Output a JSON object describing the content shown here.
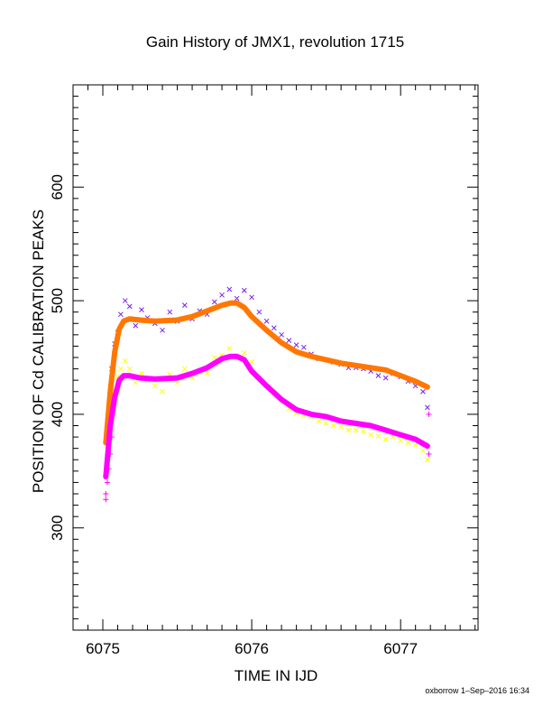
{
  "chart_data": {
    "type": "scatter",
    "title": "Gain History of JMX1, revolution 1715",
    "xlabel": "TIME IN IJD",
    "ylabel": "POSITION OF Cd CALIBRATION PEAKS",
    "xlim": [
      6074.8,
      6077.52
    ],
    "ylim": [
      210,
      690
    ],
    "x_ticks": [
      6075,
      6076,
      6077
    ],
    "y_ticks": [
      300,
      400,
      500,
      600
    ],
    "x_tick_labels": [
      "6075",
      "6076",
      "6077"
    ],
    "y_tick_labels": [
      "300",
      "400",
      "500",
      "600"
    ],
    "grid": false,
    "legend": "none",
    "footer_text": "oxborrow  1–Sep–2016 16:34",
    "series": [
      {
        "kind": "scatter-x",
        "color": "#7722ee",
        "x": [
          6075.04,
          6075.06,
          6075.08,
          6075.1,
          6075.12,
          6075.15,
          6075.18,
          6075.22,
          6075.26,
          6075.3,
          6075.35,
          6075.4,
          6075.45,
          6075.5,
          6075.55,
          6075.6,
          6075.65,
          6075.7,
          6075.75,
          6075.8,
          6075.85,
          6075.9,
          6075.95,
          6076.0,
          6076.05,
          6076.1,
          6076.15,
          6076.2,
          6076.25,
          6076.3,
          6076.35,
          6076.4,
          6076.45,
          6076.5,
          6076.55,
          6076.6,
          6076.65,
          6076.7,
          6076.75,
          6076.8,
          6076.85,
          6076.9,
          6076.95,
          6077.0,
          6077.05,
          6077.1,
          6077.15,
          6077.18
        ],
        "y": [
          405,
          440,
          462,
          472,
          488,
          500,
          495,
          478,
          492,
          485,
          480,
          474,
          490,
          482,
          496,
          484,
          491,
          488,
          499,
          505,
          510,
          502,
          509,
          503,
          490,
          482,
          476,
          470,
          465,
          461,
          459,
          453,
          449,
          448,
          446,
          444,
          441,
          441,
          440,
          438,
          434,
          432,
          436,
          433,
          429,
          425,
          420,
          406
        ]
      },
      {
        "kind": "scatter-x",
        "color": "#ffff00",
        "x": [
          6075.04,
          6075.06,
          6075.08,
          6075.1,
          6075.12,
          6075.15,
          6075.18,
          6075.22,
          6075.26,
          6075.3,
          6075.35,
          6075.4,
          6075.45,
          6075.5,
          6075.55,
          6075.6,
          6075.65,
          6075.7,
          6075.75,
          6075.8,
          6075.85,
          6075.9,
          6075.95,
          6076.0,
          6076.05,
          6076.1,
          6076.15,
          6076.2,
          6076.25,
          6076.3,
          6076.35,
          6076.4,
          6076.45,
          6076.5,
          6076.55,
          6076.6,
          6076.65,
          6076.7,
          6076.75,
          6076.8,
          6076.85,
          6076.9,
          6076.95,
          6077.0,
          6077.05,
          6077.1,
          6077.15,
          6077.18
        ],
        "y": [
          375,
          402,
          420,
          433,
          440,
          447,
          440,
          428,
          436,
          430,
          425,
          420,
          435,
          428,
          440,
          432,
          438,
          436,
          450,
          452,
          458,
          450,
          454,
          446,
          432,
          425,
          419,
          413,
          405,
          401,
          399,
          398,
          394,
          392,
          390,
          389,
          386,
          386,
          385,
          382,
          381,
          378,
          380,
          377,
          375,
          373,
          368,
          360
        ]
      },
      {
        "kind": "line-thick",
        "color": "#ff7700",
        "x": [
          6075.02,
          6075.05,
          6075.08,
          6075.11,
          6075.14,
          6075.18,
          6075.25,
          6075.35,
          6075.5,
          6075.6,
          6075.7,
          6075.8,
          6075.86,
          6075.9,
          6075.95,
          6076.0,
          6076.1,
          6076.2,
          6076.3,
          6076.4,
          6076.5,
          6076.6,
          6076.7,
          6076.8,
          6076.9,
          6077.0,
          6077.1,
          6077.18
        ],
        "y": [
          375,
          420,
          455,
          475,
          482,
          484,
          483,
          482,
          483,
          486,
          491,
          496,
          498,
          498,
          494,
          486,
          474,
          463,
          455,
          451,
          448,
          445,
          443,
          441,
          439,
          434,
          429,
          424
        ]
      },
      {
        "kind": "line-thick",
        "color": "#ff00ff",
        "x": [
          6075.02,
          6075.05,
          6075.08,
          6075.11,
          6075.14,
          6075.18,
          6075.25,
          6075.35,
          6075.5,
          6075.6,
          6075.7,
          6075.8,
          6075.86,
          6075.9,
          6075.95,
          6076.0,
          6076.1,
          6076.2,
          6076.3,
          6076.4,
          6076.5,
          6076.6,
          6076.7,
          6076.8,
          6076.9,
          6077.0,
          6077.1,
          6077.18
        ],
        "y": [
          345,
          390,
          415,
          430,
          434,
          434,
          432,
          431,
          432,
          436,
          441,
          449,
          451,
          451,
          448,
          438,
          425,
          413,
          404,
          400,
          398,
          394,
          392,
          390,
          386,
          382,
          378,
          372
        ]
      },
      {
        "kind": "plus-markers",
        "color": "#ff00ff",
        "x": [
          6075.02,
          6075.02,
          6075.03,
          6075.04,
          6075.05,
          6075.06,
          6077.19,
          6077.19
        ],
        "y": [
          325,
          330,
          340,
          352,
          365,
          380,
          365,
          400
        ]
      }
    ]
  }
}
